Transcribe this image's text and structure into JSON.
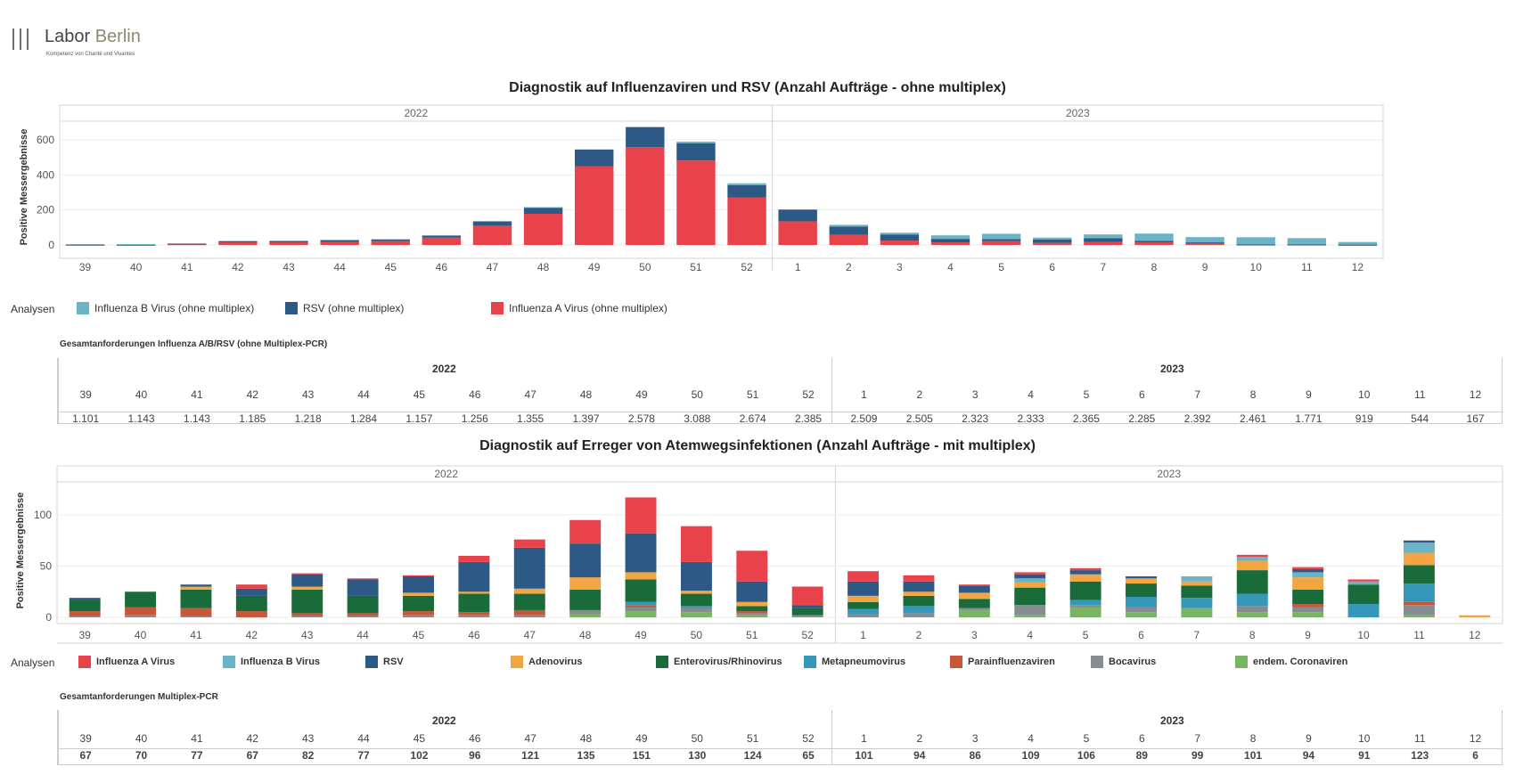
{
  "logo": {
    "name_a": "Labor",
    "name_b": "Berlin",
    "subtitle": "Kompetenz von Charité und Vivantes"
  },
  "chart1": {
    "title": "Diagnostik auf Influenzaviren und RSV (Anzahl Aufträge - ohne multiplex)",
    "legend_title": "Analysen",
    "legend": [
      {
        "name": "Influenza B Virus (ohne multiplex)",
        "color": "#6ab4c6"
      },
      {
        "name": "RSV (ohne multiplex)",
        "color": "#2c5985"
      },
      {
        "name": "Influenza A Virus (ohne multiplex)",
        "color": "#e8424a"
      }
    ]
  },
  "table1": {
    "caption": "Gesamtanforderungen Influenza A/B/RSV (ohne Multiplex-PCR)",
    "years": [
      "2022",
      "2023"
    ],
    "weeks": [
      "39",
      "40",
      "41",
      "42",
      "43",
      "44",
      "45",
      "46",
      "47",
      "48",
      "49",
      "50",
      "51",
      "52",
      "1",
      "2",
      "3",
      "4",
      "5",
      "6",
      "7",
      "8",
      "9",
      "10",
      "11",
      "12"
    ],
    "values": [
      "1.101",
      "1.143",
      "1.143",
      "1.185",
      "1.218",
      "1.284",
      "1.157",
      "1.256",
      "1.355",
      "1.397",
      "2.578",
      "3.088",
      "2.674",
      "2.385",
      "2.509",
      "2.505",
      "2.323",
      "2.333",
      "2.365",
      "2.285",
      "2.392",
      "2.461",
      "1.771",
      "919",
      "544",
      "167"
    ]
  },
  "chart2": {
    "title": "Diagnostik auf Erreger von Atemwegsinfektionen (Anzahl Aufträge - mit multiplex)",
    "legend_title": "Analysen",
    "legend": [
      {
        "name": "Influenza A Virus",
        "color": "#e8424a"
      },
      {
        "name": "Influenza B Virus",
        "color": "#6ab4c6"
      },
      {
        "name": "RSV",
        "color": "#2c5985"
      },
      {
        "name": "Adenovirus",
        "color": "#f2a541"
      },
      {
        "name": "Enterovirus/Rhinovirus",
        "color": "#1a6b3a"
      },
      {
        "name": "Metapneumovirus",
        "color": "#3598b8"
      },
      {
        "name": "Parainfluenzaviren",
        "color": "#c8563a"
      },
      {
        "name": "Bocavirus",
        "color": "#878c91"
      },
      {
        "name": "endem. Coronaviren",
        "color": "#79b462"
      }
    ]
  },
  "table2": {
    "caption": "Gesamtanforderungen Multiplex-PCR",
    "years": [
      "2022",
      "2023"
    ],
    "weeks": [
      "39",
      "40",
      "41",
      "42",
      "43",
      "44",
      "45",
      "46",
      "47",
      "48",
      "49",
      "50",
      "51",
      "52",
      "1",
      "2",
      "3",
      "4",
      "5",
      "6",
      "7",
      "8",
      "9",
      "10",
      "11",
      "12"
    ],
    "values": [
      "67",
      "70",
      "77",
      "67",
      "82",
      "77",
      "102",
      "96",
      "121",
      "135",
      "151",
      "130",
      "124",
      "65",
      "101",
      "94",
      "86",
      "109",
      "106",
      "89",
      "99",
      "101",
      "94",
      "91",
      "123",
      "6"
    ]
  },
  "chart_data": [
    {
      "type": "bar",
      "stacked": true,
      "title": "Diagnostik auf Influenzaviren und RSV (Anzahl Aufträge - ohne multiplex)",
      "ylabel": "Positive Messergebnisse",
      "xlabel": "",
      "years": [
        "2022",
        "2023"
      ],
      "year_split_index": 14,
      "categories": [
        "39",
        "40",
        "41",
        "42",
        "43",
        "44",
        "45",
        "46",
        "47",
        "48",
        "49",
        "50",
        "51",
        "52",
        "1",
        "2",
        "3",
        "4",
        "5",
        "6",
        "7",
        "8",
        "9",
        "10",
        "11",
        "12"
      ],
      "yticks": [
        0,
        200,
        400,
        600
      ],
      "ylim": [
        -40,
        680
      ],
      "grid": true,
      "series": [
        {
          "name": "Influenza A Virus (ohne multiplex)",
          "color": "#e8424a",
          "values": [
            1,
            1,
            4,
            15,
            15,
            18,
            22,
            42,
            110,
            178,
            450,
            558,
            482,
            272,
            135,
            58,
            25,
            15,
            22,
            12,
            18,
            15,
            10,
            2,
            2,
            1
          ]
        },
        {
          "name": "RSV (ohne multiplex)",
          "color": "#2c5985",
          "values": [
            2,
            1,
            4,
            7,
            8,
            10,
            10,
            12,
            25,
            35,
            95,
            115,
            98,
            70,
            67,
            47,
            35,
            20,
            12,
            20,
            20,
            8,
            5,
            2,
            2,
            1
          ]
        },
        {
          "name": "Influenza B Virus (ohne multiplex)",
          "color": "#6ab4c6",
          "values": [
            0,
            3,
            0,
            0,
            0,
            0,
            0,
            0,
            0,
            3,
            0,
            0,
            10,
            10,
            0,
            10,
            10,
            20,
            30,
            10,
            22,
            42,
            30,
            40,
            35,
            15
          ]
        }
      ]
    },
    {
      "type": "bar",
      "stacked": true,
      "title": "Diagnostik auf Erreger von Atemwegsinfektionen (Anzahl Aufträge - mit multiplex)",
      "ylabel": "Positive Messergebnisse",
      "xlabel": "",
      "years": [
        "2022",
        "2023"
      ],
      "year_split_index": 14,
      "categories": [
        "39",
        "40",
        "41",
        "42",
        "43",
        "44",
        "45",
        "46",
        "47",
        "48",
        "49",
        "50",
        "51",
        "52",
        "1",
        "2",
        "3",
        "4",
        "5",
        "6",
        "7",
        "8",
        "9",
        "10",
        "11",
        "12"
      ],
      "yticks": [
        0,
        50,
        100
      ],
      "ylim": [
        -8,
        130
      ],
      "grid": true,
      "series": [
        {
          "name": "endem. Coronaviren",
          "color": "#79b462",
          "values": [
            0,
            0,
            0,
            0,
            0,
            0,
            0,
            0,
            0,
            3,
            6,
            5,
            2,
            0,
            0,
            0,
            7,
            2,
            10,
            5,
            9,
            5,
            5,
            0,
            2,
            0
          ]
        },
        {
          "name": "Bocavirus",
          "color": "#878c91",
          "values": [
            1,
            2,
            1,
            0,
            1,
            1,
            2,
            2,
            2,
            4,
            4,
            3,
            2,
            2,
            3,
            4,
            2,
            10,
            2,
            5,
            0,
            6,
            5,
            0,
            10,
            0
          ]
        },
        {
          "name": "Parainfluenzaviren",
          "color": "#c8563a",
          "values": [
            5,
            8,
            8,
            6,
            3,
            3,
            4,
            3,
            5,
            0,
            2,
            1,
            2,
            0,
            0,
            0,
            0,
            0,
            0,
            0,
            0,
            0,
            3,
            0,
            3,
            0
          ]
        },
        {
          "name": "Metapneumovirus",
          "color": "#3598b8",
          "values": [
            0,
            0,
            0,
            0,
            0,
            0,
            0,
            0,
            0,
            0,
            3,
            2,
            0,
            0,
            5,
            7,
            0,
            0,
            5,
            10,
            10,
            12,
            0,
            13,
            18,
            0
          ]
        },
        {
          "name": "Enterovirus/Rhinovirus",
          "color": "#1a6b3a",
          "values": [
            11,
            15,
            18,
            15,
            23,
            17,
            15,
            18,
            16,
            20,
            22,
            12,
            5,
            7,
            7,
            10,
            9,
            17,
            18,
            13,
            12,
            23,
            14,
            19,
            18,
            0
          ]
        },
        {
          "name": "Adenovirus",
          "color": "#f2a541",
          "values": [
            0,
            0,
            3,
            0,
            3,
            0,
            3,
            2,
            5,
            12,
            7,
            3,
            4,
            0,
            6,
            4,
            6,
            5,
            7,
            5,
            4,
            9,
            12,
            0,
            12,
            2
          ]
        },
        {
          "name": "Influenza B Virus",
          "color": "#6ab4c6",
          "values": [
            0,
            0,
            0,
            0,
            0,
            0,
            0,
            0,
            0,
            0,
            0,
            0,
            0,
            0,
            0,
            0,
            0,
            4,
            0,
            0,
            5,
            4,
            5,
            3,
            10,
            0
          ]
        },
        {
          "name": "RSV",
          "color": "#2c5985",
          "values": [
            2,
            0,
            2,
            7,
            12,
            16,
            16,
            29,
            40,
            33,
            38,
            28,
            20,
            3,
            14,
            10,
            7,
            4,
            4,
            2,
            0,
            0,
            3,
            0,
            2,
            0
          ]
        },
        {
          "name": "Influenza A Virus",
          "color": "#e8424a",
          "values": [
            0,
            0,
            0,
            4,
            1,
            1,
            1,
            6,
            8,
            23,
            35,
            35,
            30,
            18,
            10,
            6,
            1,
            2,
            2,
            0,
            0,
            2,
            2,
            2,
            0,
            0
          ]
        }
      ]
    }
  ]
}
